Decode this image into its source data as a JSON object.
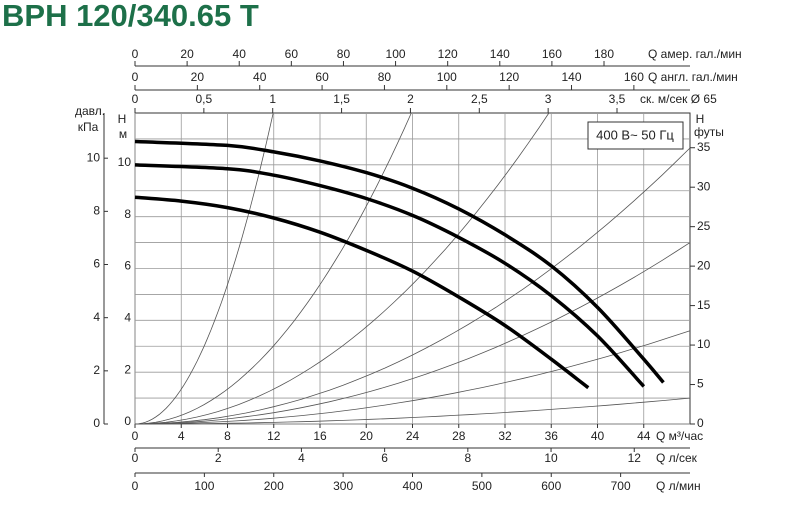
{
  "title": "BPH 120/340.65 T",
  "badge": "400 В~ 50 Гц",
  "chart_data": {
    "type": "line",
    "xlim": [
      0,
      48
    ],
    "xticks": [
      0,
      4,
      8,
      12,
      16,
      20,
      24,
      28,
      32,
      36,
      40,
      44
    ],
    "xlabel": "Q  м³/час",
    "ylim": [
      0,
      12
    ],
    "yticks": [
      0,
      2,
      4,
      6,
      8,
      10
    ],
    "yminor": [
      1,
      3,
      5,
      7,
      9,
      11
    ],
    "ylabel": "H",
    "yunit": "м",
    "y2lim": [
      0,
      39.4
    ],
    "y2ticks": [
      0,
      5,
      10,
      15,
      20,
      25,
      30,
      35
    ],
    "y2label": "H",
    "y2unit": "футы",
    "grid": true,
    "series": [
      {
        "color": "#000000",
        "x": [
          0,
          8,
          12,
          16,
          20,
          24,
          28,
          32,
          36,
          40,
          44,
          45.7
        ],
        "values": [
          10.9,
          10.75,
          10.5,
          10.15,
          9.7,
          9.1,
          8.3,
          7.3,
          6.1,
          4.5,
          2.5,
          1.6
        ]
      },
      {
        "color": "#000000",
        "x": [
          0,
          8,
          12,
          16,
          20,
          24,
          28,
          32,
          36,
          40,
          44
        ],
        "values": [
          10.0,
          9.85,
          9.6,
          9.2,
          8.7,
          8.05,
          7.2,
          6.2,
          4.95,
          3.4,
          1.45
        ]
      },
      {
        "color": "#000000",
        "x": [
          0,
          4,
          8,
          12,
          16,
          20,
          24,
          28,
          32,
          36,
          39.2
        ],
        "values": [
          8.75,
          8.6,
          8.35,
          7.95,
          7.4,
          6.7,
          5.9,
          4.9,
          3.8,
          2.5,
          1.4
        ]
      }
    ],
    "system_curves": {
      "color": "#555555",
      "x": [
        11.95,
        23.9,
        35.8,
        48,
        48,
        48,
        48
      ],
      "values": [
        12,
        12,
        12,
        10.65,
        7.0,
        3.6,
        1.0
      ]
    },
    "extra_axes": {
      "kpa": {
        "label": "давл.",
        "unit": "кПа",
        "lim": [
          0,
          11.7
        ],
        "ticks": [
          0,
          2,
          4,
          6,
          8,
          10
        ]
      },
      "us_gpm": {
        "label": "Q  амер. гал./мин",
        "lim": [
          0,
          213
        ],
        "ticks": [
          0,
          20,
          40,
          60,
          80,
          100,
          120,
          140,
          160,
          180
        ]
      },
      "uk_gpm": {
        "label": "Q  англ. гал./мин",
        "lim": [
          0,
          178
        ],
        "ticks": [
          0,
          20,
          40,
          60,
          80,
          100,
          120,
          140,
          160
        ]
      },
      "velocity": {
        "label": "ск. м/сек Ø 65",
        "lim": [
          0,
          4.03
        ],
        "ticks": [
          0,
          {
            "value": 0.5,
            "label": "0,5"
          },
          1,
          {
            "value": 1.5,
            "label": "1,5"
          },
          2,
          {
            "value": 2.5,
            "label": "2,5"
          },
          3,
          {
            "value": 3.5,
            "label": "3,5"
          }
        ]
      },
      "lps": {
        "label": "Q  л/сек",
        "lim": [
          0,
          13.34
        ],
        "ticks": [
          0,
          2,
          4,
          6,
          8,
          10,
          12
        ]
      },
      "lpm": {
        "label": "Q  л/мин",
        "lim": [
          0,
          800
        ],
        "ticks": [
          0,
          100,
          200,
          300,
          400,
          500,
          600,
          700
        ]
      }
    }
  }
}
